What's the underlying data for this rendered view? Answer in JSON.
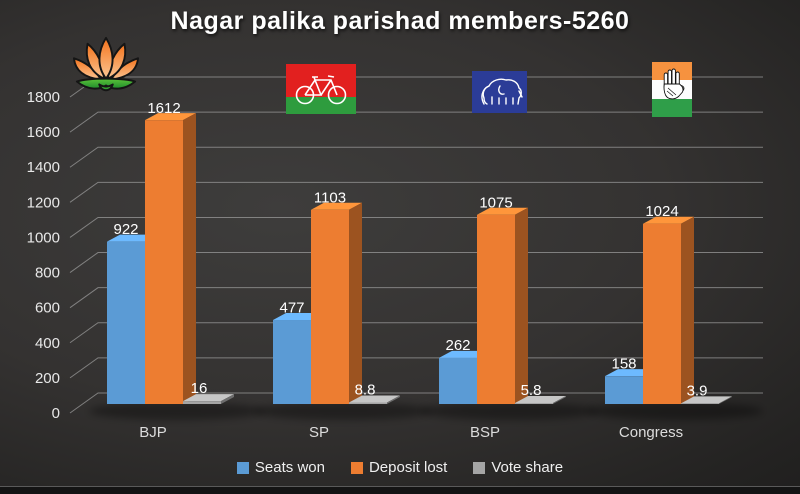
{
  "title": "Nagar palika parishad members-5260",
  "chart_data": {
    "type": "bar",
    "variant": "3d-clustered-column",
    "title": "Nagar palika parishad members-5260",
    "categories": [
      "BJP",
      "SP",
      "BSP",
      "Congress"
    ],
    "series": [
      {
        "name": "Seats won",
        "color": "#5B9BD5",
        "values": [
          922,
          477,
          262,
          158
        ]
      },
      {
        "name": "Deposit lost",
        "color": "#ED7D31",
        "values": [
          1612,
          1103,
          1075,
          1024
        ]
      },
      {
        "name": "Vote share",
        "color": "#A5A5A5",
        "values": [
          16,
          8.8,
          5.8,
          3.9
        ]
      }
    ],
    "y_axis": {
      "min": 0,
      "max": 1800,
      "step": 200,
      "tick_labels": [
        "0",
        "200",
        "400",
        "600",
        "800",
        "1000",
        "1200",
        "1400",
        "1600",
        "1800"
      ]
    },
    "grid": "horizontal",
    "legend_position": "bottom",
    "background": "dark-gradient",
    "text_color": "#ffffff",
    "gridline_color": "#999999"
  },
  "logos": [
    {
      "id": "bjp-lotus-logo",
      "party": "BJP"
    },
    {
      "id": "sp-bicycle-flag-logo",
      "party": "SP"
    },
    {
      "id": "bsp-elephant-flag-logo",
      "party": "BSP"
    },
    {
      "id": "congress-hand-flag-logo",
      "party": "Congress"
    }
  ]
}
